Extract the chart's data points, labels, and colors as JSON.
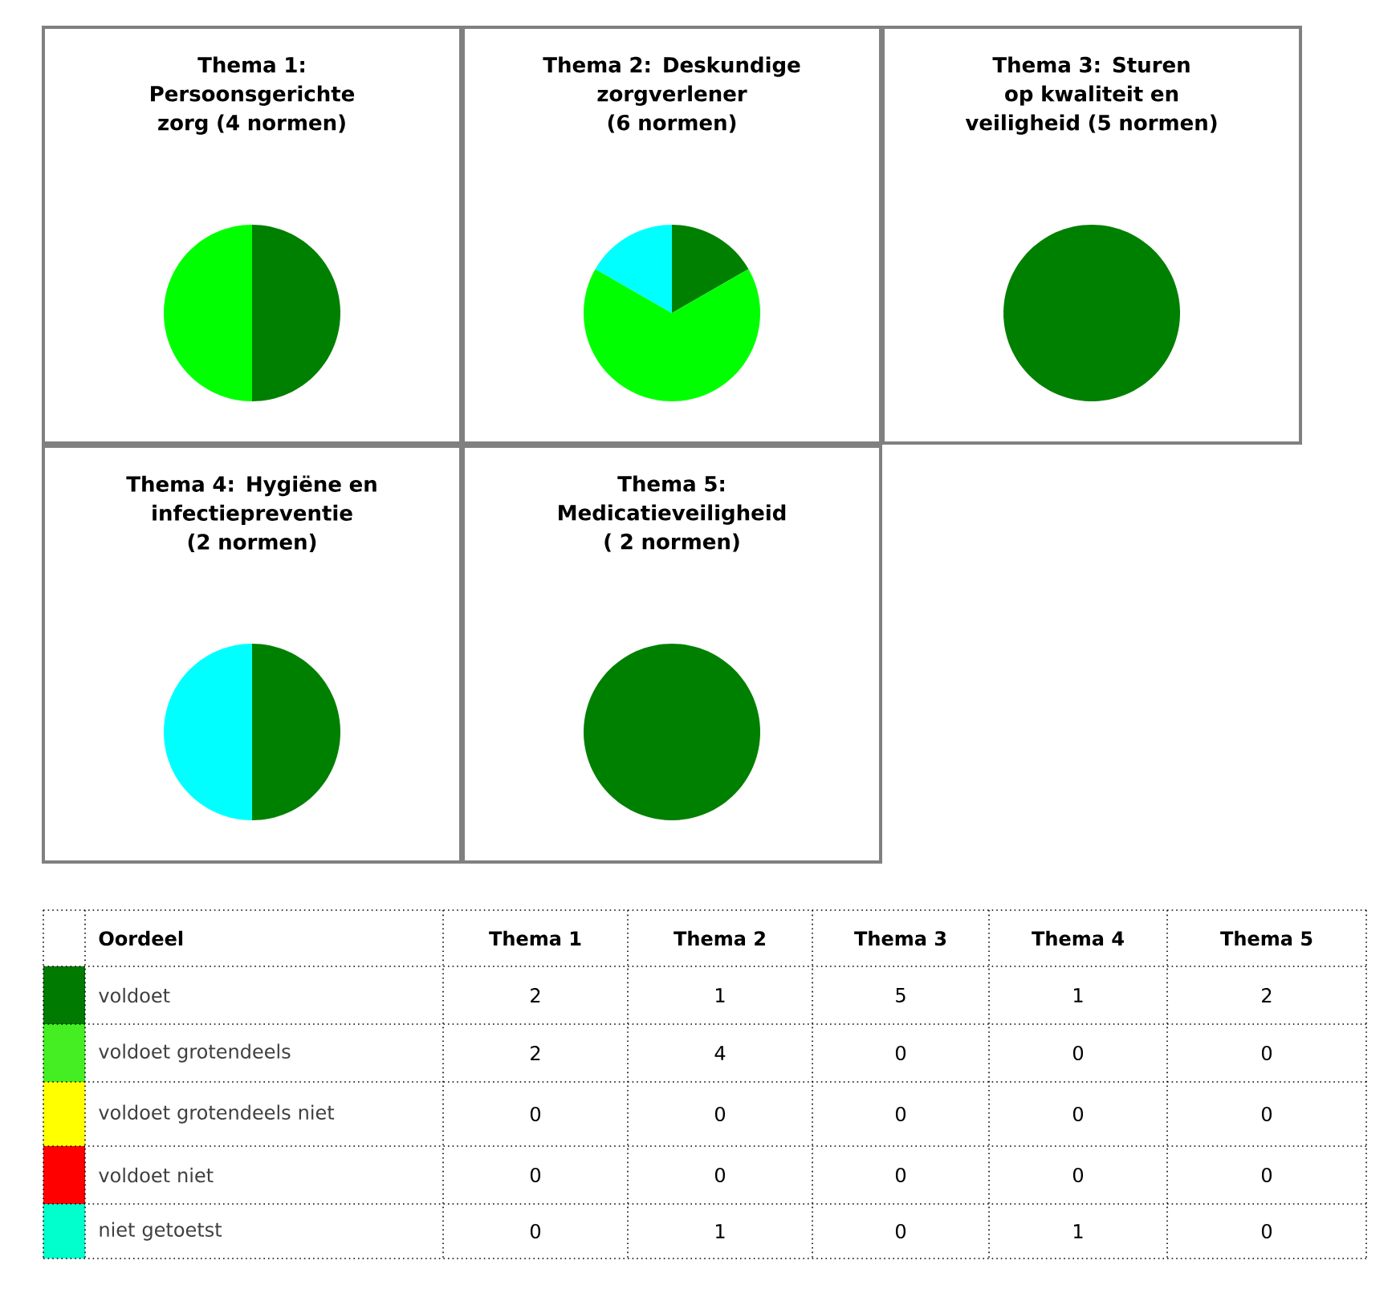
{
  "chart_data": [
    {
      "type": "pie",
      "title": "Thema 1: Persoonsgerichte zorg (4 normen)",
      "categories": [
        null,
        null
      ],
      "values": [
        50,
        50
      ],
      "colors": [
        "#008000",
        "#00ff00"
      ]
    },
    {
      "type": "pie",
      "title": "Thema 2: Deskundige zorgverlener (6 normen)",
      "categories": [
        null,
        null,
        null
      ],
      "values": [
        16.7,
        66.6,
        16.7
      ],
      "colors": [
        "#008000",
        "#00ff00",
        "#00ffff"
      ]
    },
    {
      "type": "pie",
      "title": "Thema 3: Sturen op kwaliteit en veiligheid (5 normen)",
      "categories": [
        null
      ],
      "values": [
        100
      ],
      "colors": [
        "#008000"
      ]
    },
    {
      "type": "pie",
      "title": "Thema 4: Hygiëne en infectiepreventie (2 normen)",
      "categories": [
        null,
        null
      ],
      "values": [
        50,
        50
      ],
      "colors": [
        "#008000",
        "#00ffff"
      ]
    },
    {
      "type": "pie",
      "title": "Thema 5: Medicatieveiligheid ( 2 normen)",
      "categories": [
        null
      ],
      "values": [
        100
      ],
      "colors": [
        "#008000"
      ]
    },
    {
      "type": "other",
      "ylabel": "Oordeel",
      "categories": [
        "voldoet",
        "voldoet grotendeels",
        "voldoet grotendeels niet",
        "voldoet niet",
        "niet getoetst"
      ],
      "colors": [
        "#007a00",
        "#44ee22",
        "#ffff00",
        "#ff0000",
        "#00ffcc"
      ],
      "data_labels": true,
      "series": [
        {
          "name": "Thema 1",
          "values": [
            2,
            2,
            0,
            0,
            0
          ]
        },
        {
          "name": "Thema 2",
          "values": [
            1,
            4,
            0,
            0,
            1
          ]
        },
        {
          "name": "Thema 3",
          "values": [
            5,
            0,
            0,
            0,
            0
          ]
        },
        {
          "name": "Thema 4",
          "values": [
            1,
            0,
            0,
            0,
            1
          ]
        },
        {
          "name": "Thema 5",
          "values": [
            2,
            0,
            0,
            0,
            0
          ]
        }
      ]
    }
  ]
}
